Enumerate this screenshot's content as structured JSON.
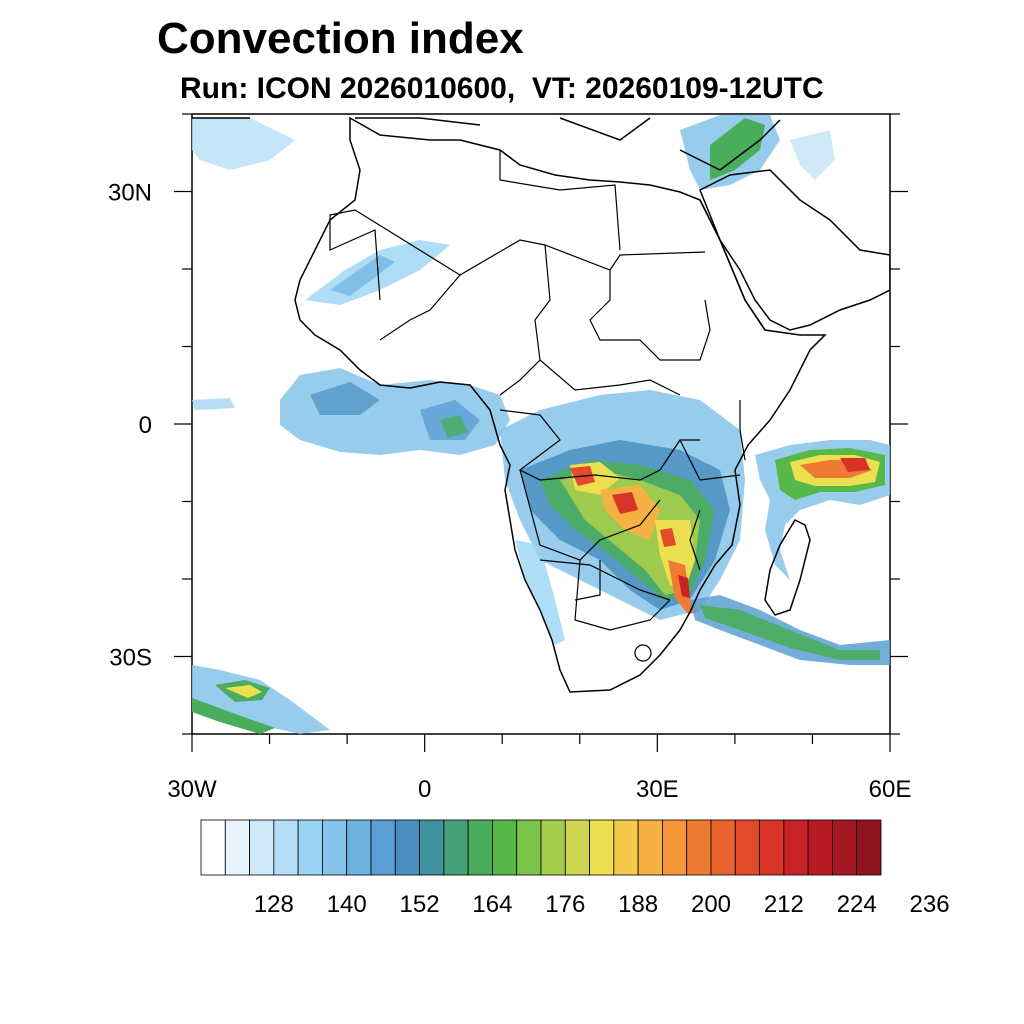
{
  "title": "Convection index",
  "subtitle": "Run: ICON 2026010600,  VT: 20260109-12UTC",
  "map": {
    "lon_range": [
      -30,
      60
    ],
    "lat_range": [
      -40,
      40
    ],
    "x_ticks": [
      {
        "label": "30W",
        "lon": -30
      },
      {
        "label": "0",
        "lon": 0
      },
      {
        "label": "30E",
        "lon": 30
      },
      {
        "label": "60E",
        "lon": 60
      }
    ],
    "y_ticks": [
      {
        "label": "30N",
        "lat": 30
      },
      {
        "label": "0",
        "lat": 0
      },
      {
        "label": "30S",
        "lat": -30
      }
    ]
  },
  "colorbar": {
    "colors": [
      "#ffffff",
      "#e8f4fb",
      "#cfe9f8",
      "#b5def6",
      "#9ad4f4",
      "#85c3ea",
      "#6eb2e0",
      "#5a9fd3",
      "#4a8fbf",
      "#3f93a1",
      "#45a079",
      "#4aad5c",
      "#56b947",
      "#7cc34a",
      "#a6cd4d",
      "#cfd54e",
      "#ecdf50",
      "#f6c94a",
      "#f5b143",
      "#f3973a",
      "#ef7b33",
      "#e9612d",
      "#e14a2a",
      "#d83327",
      "#c82126",
      "#b81a24",
      "#a51722",
      "#8f141f"
    ],
    "labels": [
      "128",
      "140",
      "152",
      "164",
      "176",
      "188",
      "200",
      "212",
      "224",
      "236"
    ]
  }
}
